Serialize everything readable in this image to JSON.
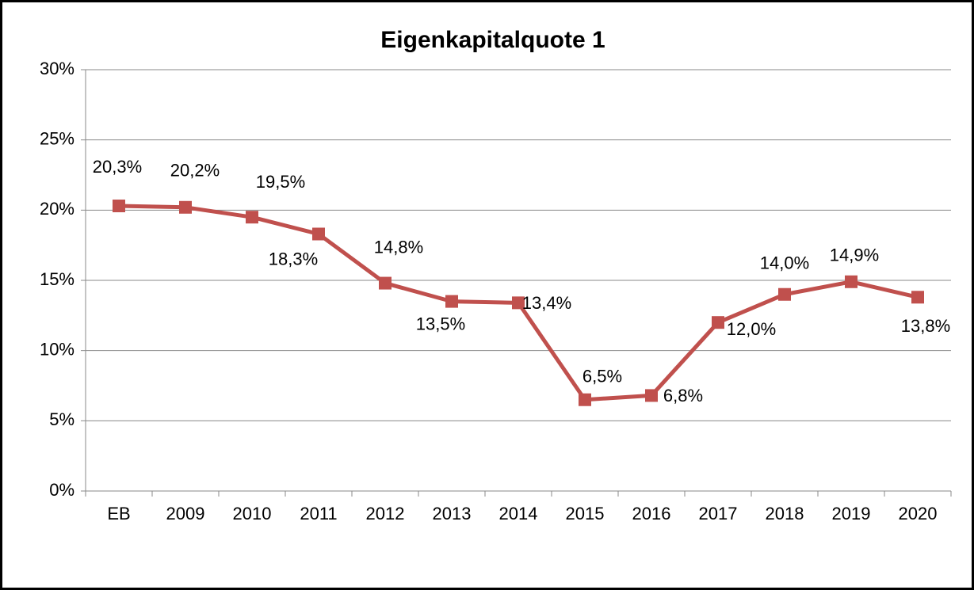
{
  "chart_data": {
    "type": "line",
    "title": "Eigenkapitalquote 1",
    "categories": [
      "EB",
      "2009",
      "2010",
      "2011",
      "2012",
      "2013",
      "2014",
      "2015",
      "2016",
      "2017",
      "2018",
      "2019",
      "2020"
    ],
    "series": [
      {
        "name": "Eigenkapitalquote 1",
        "color": "#c0504d",
        "values": [
          20.3,
          20.2,
          19.5,
          18.3,
          14.8,
          13.5,
          13.4,
          6.5,
          6.8,
          12.0,
          14.0,
          14.9,
          13.8
        ],
        "value_labels": [
          "20,3%",
          "20,2%",
          "19,5%",
          "18,3%",
          "14,8%",
          "13,5%",
          "13,4%",
          "6,5%",
          "6,8%",
          "12,0%",
          "14,0%",
          "14,9%",
          "13,8%"
        ]
      }
    ],
    "ylim": [
      0,
      30
    ],
    "yticks": [
      {
        "value": 0,
        "label": "0%"
      },
      {
        "value": 5,
        "label": "5%"
      },
      {
        "value": 10,
        "label": "10%"
      },
      {
        "value": 15,
        "label": "15%"
      },
      {
        "value": 20,
        "label": "20%"
      },
      {
        "value": 25,
        "label": "25%"
      },
      {
        "value": 30,
        "label": "30%"
      }
    ],
    "grid": true
  }
}
